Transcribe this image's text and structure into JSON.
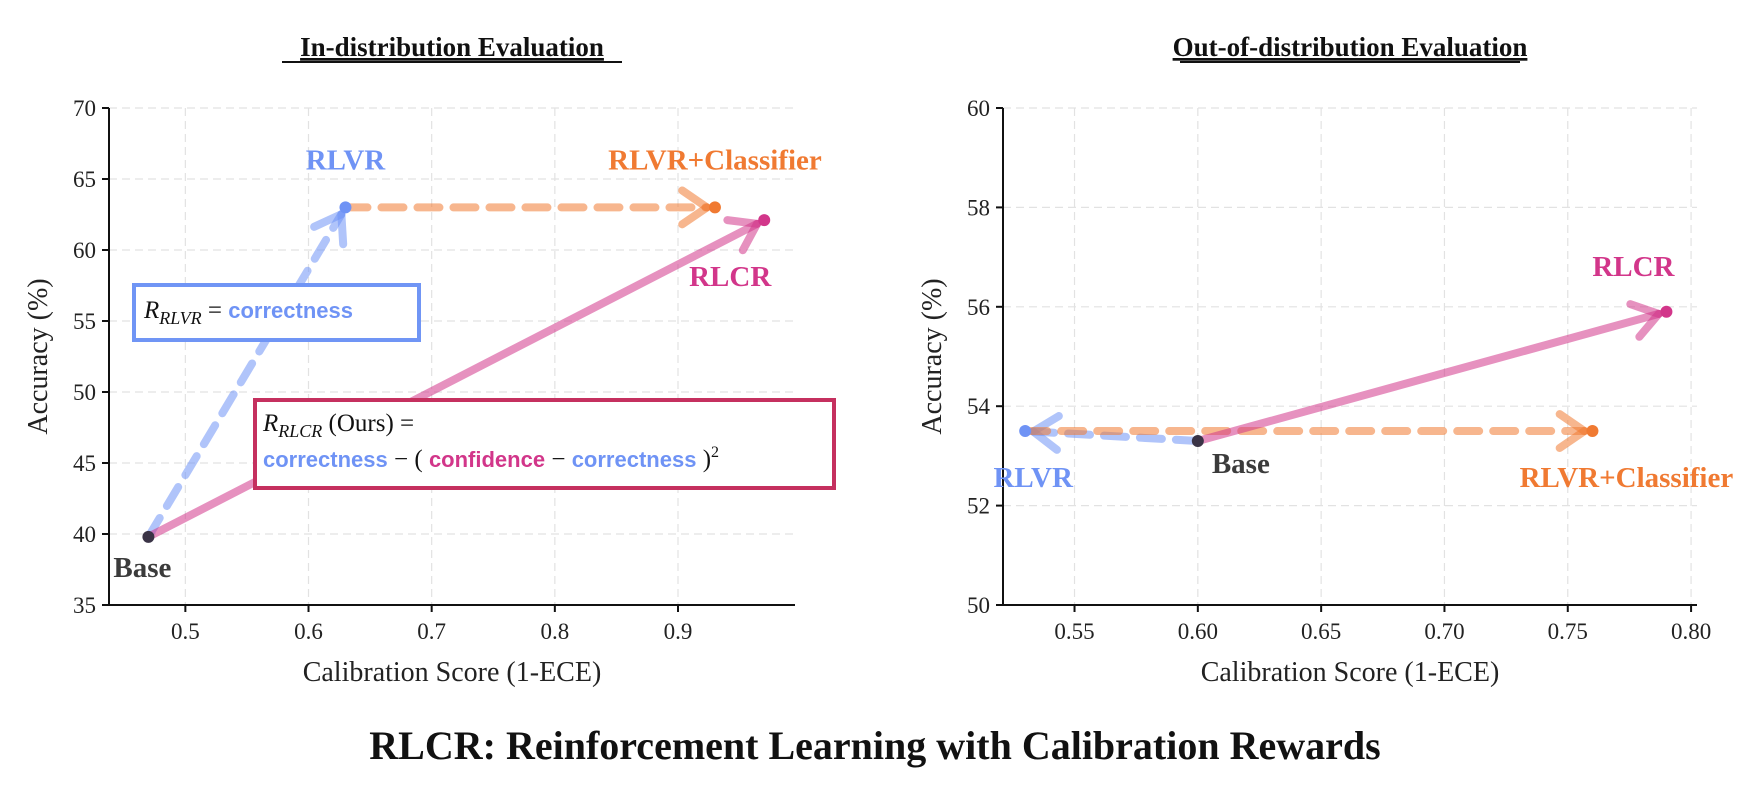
{
  "colors": {
    "base": "#3a3346",
    "rlvr": "#6f93f5",
    "classifier": "#f07a32",
    "rlcr": "#d2368a",
    "box_blue": "#7095f5",
    "box_pink": "#c5305f"
  },
  "figure_title": "RLCR: Reinforcement Learning with Calibration Rewards",
  "annotations": {
    "rlvr_box": {
      "r": "R",
      "sub": "RLVR",
      "eq": " = ",
      "term": "correctness"
    },
    "rlcr_box": {
      "r": "R",
      "sub": "RLCR",
      "rest": " (Ours) =",
      "t1": "correctness",
      "op1": " − ( ",
      "t2": "confidence",
      "op2": " − ",
      "t3": "correctness",
      "close": " )",
      "sup": "2"
    }
  },
  "chart_data": [
    {
      "type": "scatter",
      "title": "In-distribution Evaluation",
      "xlabel": "Calibration Score (1-ECE)",
      "ylabel": "Accuracy (%)",
      "xlim": [
        0.438,
        0.995
      ],
      "ylim": [
        35,
        70
      ],
      "xticks": [
        0.5,
        0.6,
        0.7,
        0.8,
        0.9
      ],
      "xtick_labels": [
        "0.5",
        "0.6",
        "0.7",
        "0.8",
        "0.9"
      ],
      "yticks": [
        35,
        40,
        45,
        50,
        55,
        60,
        65,
        70
      ],
      "ytick_labels": [
        "35",
        "40",
        "45",
        "50",
        "55",
        "60",
        "65",
        "70"
      ],
      "grid": true,
      "points": [
        {
          "name": "Base",
          "x": 0.47,
          "y": 39.8,
          "color_key": "base"
        },
        {
          "name": "RLVR",
          "x": 0.63,
          "y": 63.0,
          "color_key": "rlvr"
        },
        {
          "name": "RLVR+Classifier",
          "x": 0.93,
          "y": 63.0,
          "color_key": "classifier"
        },
        {
          "name": "RLCR",
          "x": 0.97,
          "y": 62.1,
          "color_key": "rlcr"
        }
      ],
      "arrows": [
        {
          "from": "Base",
          "to": "RLVR",
          "style": "dashed",
          "color_key": "rlvr"
        },
        {
          "from": "RLVR",
          "to": "RLVR+Classifier",
          "style": "dashed",
          "color_key": "classifier"
        },
        {
          "from": "Base",
          "to": "RLCR",
          "style": "solid",
          "color_key": "rlcr"
        }
      ]
    },
    {
      "type": "scatter",
      "title": "Out-of-distribution Evaluation",
      "xlabel": "Calibration Score (1-ECE)",
      "ylabel": "Accuracy (%)",
      "xlim": [
        0.521,
        0.8024
      ],
      "ylim": [
        50,
        60
      ],
      "xticks": [
        0.55,
        0.6,
        0.65,
        0.7,
        0.75,
        0.8
      ],
      "xtick_labels": [
        "0.55",
        "0.60",
        "0.65",
        "0.70",
        "0.75",
        "0.80"
      ],
      "yticks": [
        50,
        52,
        54,
        56,
        58,
        60
      ],
      "ytick_labels": [
        "50",
        "52",
        "54",
        "56",
        "58",
        "60"
      ],
      "grid": true,
      "points": [
        {
          "name": "Base",
          "x": 0.6,
          "y": 53.3,
          "color_key": "base"
        },
        {
          "name": "RLVR",
          "x": 0.53,
          "y": 53.5,
          "color_key": "rlvr"
        },
        {
          "name": "RLVR+Classifier",
          "x": 0.76,
          "y": 53.5,
          "color_key": "classifier"
        },
        {
          "name": "RLCR",
          "x": 0.79,
          "y": 55.9,
          "color_key": "rlcr"
        }
      ],
      "arrows": [
        {
          "from": "Base",
          "to": "RLVR",
          "style": "dashed",
          "color_key": "rlvr"
        },
        {
          "from": "RLVR",
          "to": "RLVR+Classifier",
          "style": "dashed",
          "color_key": "classifier"
        },
        {
          "from": "Base",
          "to": "RLCR",
          "style": "solid",
          "color_key": "rlcr"
        }
      ]
    }
  ]
}
